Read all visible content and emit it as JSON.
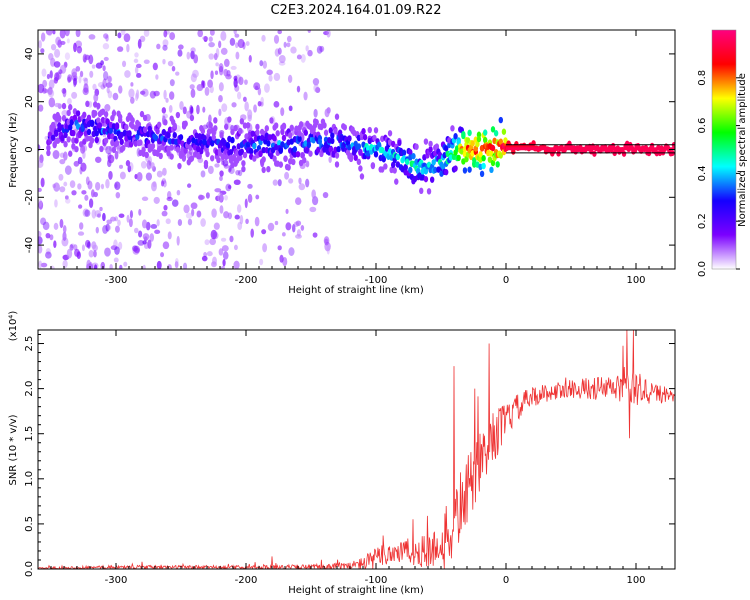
{
  "title": "C2E3.2024.164.01.09.R22",
  "chart_data": [
    {
      "type": "heatmap",
      "xlabel": "Height of straight line (km)",
      "ylabel": "Frequency (Hz)",
      "xlim": [
        -360,
        130
      ],
      "ylim": [
        -50,
        50
      ],
      "x_ticks": [
        -300,
        -200,
        -100,
        0,
        100
      ],
      "y_ticks": [
        -40,
        -20,
        0,
        20,
        40
      ],
      "colorbar": {
        "label": "Normalized spectral amplitude",
        "range": [
          0.0,
          1.0
        ],
        "ticks": [
          "0.0",
          "0.2",
          "0.4",
          "0.6",
          "0.8"
        ],
        "tick_values": [
          0.0,
          0.2,
          0.4,
          0.6,
          0.8
        ],
        "colors": [
          "#ffffff",
          "#7b00ff",
          "#1500ff",
          "#00ffff",
          "#00ff00",
          "#ffff00",
          "#ff0000",
          "#ff007f"
        ]
      },
      "ridge": {
        "x": [
          -350,
          -330,
          -300,
          -270,
          -240,
          -210,
          -180,
          -150,
          -120,
          -100,
          -80,
          -70,
          -60,
          -50,
          -45,
          -40,
          -35,
          -30,
          -20,
          -10,
          0,
          50,
          100,
          130
        ],
        "y": [
          6,
          10,
          7,
          5,
          3,
          2,
          2,
          3,
          3,
          0,
          -4,
          -7,
          -8,
          -6,
          -3,
          -1,
          0,
          0,
          1,
          1,
          1,
          0,
          0,
          0
        ],
        "amplitude": [
          0.2,
          0.35,
          0.3,
          0.3,
          0.25,
          0.3,
          0.35,
          0.35,
          0.35,
          0.4,
          0.4,
          0.5,
          0.45,
          0.45,
          0.5,
          0.55,
          0.7,
          0.85,
          0.85,
          0.85,
          0.9,
          0.95,
          0.95,
          0.95
        ]
      },
      "scatter_region": {
        "x_range": [
          -360,
          -135
        ],
        "y_range": [
          -50,
          50
        ],
        "amplitude": 0.05
      }
    },
    {
      "type": "line",
      "xlabel": "Height of straight line (km)",
      "ylabel": "SNR (10 * v/v)",
      "y_multiplier": "(x10⁴)",
      "xlim": [
        -360,
        130
      ],
      "ylim": [
        0,
        2.65
      ],
      "x_ticks": [
        -300,
        -200,
        -100,
        0,
        100
      ],
      "y_ticks": [
        "0.0",
        "0.5",
        "1.0",
        "1.5",
        "2.0",
        "2.5"
      ],
      "y_tick_values": [
        0.0,
        0.5,
        1.0,
        1.5,
        2.0,
        2.5
      ],
      "color": "#ee3333",
      "envelope": {
        "x": [
          -360,
          -300,
          -200,
          -150,
          -120,
          -110,
          -100,
          -90,
          -80,
          -70,
          -60,
          -50,
          -45,
          -40,
          -35,
          -30,
          -25,
          -20,
          -15,
          -10,
          -5,
          0,
          10,
          20,
          30,
          50,
          80,
          100,
          130
        ],
        "base": [
          0.01,
          0.02,
          0.02,
          0.02,
          0.03,
          0.06,
          0.12,
          0.18,
          0.2,
          0.18,
          0.2,
          0.25,
          0.35,
          0.5,
          0.7,
          0.85,
          1.0,
          1.15,
          1.3,
          1.45,
          1.55,
          1.65,
          1.8,
          1.9,
          1.95,
          2.0,
          2.0,
          2.0,
          1.9
        ],
        "noise": [
          0.01,
          0.02,
          0.02,
          0.03,
          0.05,
          0.08,
          0.12,
          0.15,
          0.15,
          0.15,
          0.2,
          0.25,
          0.4,
          0.4,
          0.4,
          0.4,
          0.35,
          0.35,
          0.3,
          0.3,
          0.25,
          0.2,
          0.15,
          0.12,
          0.1,
          0.1,
          0.15,
          0.2,
          0.05
        ]
      },
      "peaks": [
        {
          "x": -180,
          "y": 0.14
        },
        {
          "x": -40,
          "y": 2.25
        },
        {
          "x": -24,
          "y": 2.0
        },
        {
          "x": -13,
          "y": 2.5
        },
        {
          "x": 93,
          "y": 2.65
        },
        {
          "x": 98,
          "y": 2.65
        },
        {
          "x": 95,
          "y": 1.45
        }
      ]
    }
  ]
}
